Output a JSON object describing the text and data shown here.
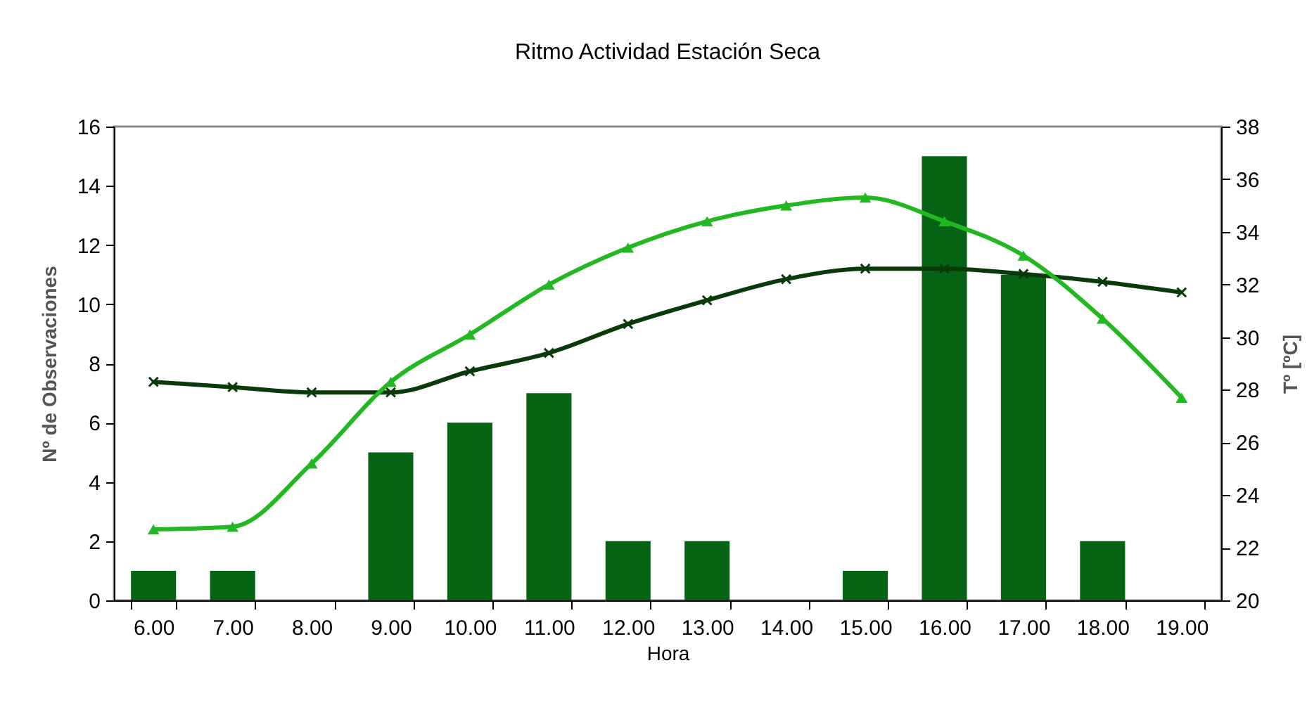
{
  "chart_data": {
    "type": "bar",
    "title": "Ritmo Actividad Estación Seca",
    "xlabel": "Hora",
    "ylabel": "Nº de Observaciones",
    "y2label": "Tº [ºC]",
    "categories": [
      "6.00",
      "7.00",
      "8.00",
      "9.00",
      "10.00",
      "11.00",
      "12.00",
      "13.00",
      "14.00",
      "15.00",
      "16.00",
      "17.00",
      "18.00",
      "19.00"
    ],
    "series": [
      {
        "color": "#056314",
        "values": [
          1,
          1,
          0,
          5,
          6,
          7,
          2,
          2,
          0,
          1,
          15,
          11,
          2,
          0
        ]
      },
      {
        "type": "line",
        "axis": "y2",
        "color": "#0a3a0a",
        "marker": "cross",
        "values": [
          28.3,
          28.1,
          27.9,
          27.9,
          28.7,
          29.4,
          30.5,
          31.4,
          32.2,
          32.6,
          32.6,
          32.4,
          32.1,
          31.7
        ]
      },
      {
        "type": "line",
        "axis": "y2",
        "color": "#22b822",
        "marker": "triangle",
        "values": [
          22.7,
          22.8,
          25.2,
          28.3,
          30.1,
          32.0,
          33.4,
          34.4,
          35.0,
          35.3,
          34.4,
          33.1,
          30.7,
          27.7
        ]
      }
    ],
    "ylim": [
      0,
      16
    ],
    "yticks": [
      0,
      2,
      4,
      6,
      8,
      10,
      12,
      14,
      16
    ],
    "y2lim": [
      20,
      38
    ],
    "y2ticks": [
      20,
      22,
      24,
      26,
      28,
      30,
      32,
      34,
      36,
      38
    ]
  }
}
